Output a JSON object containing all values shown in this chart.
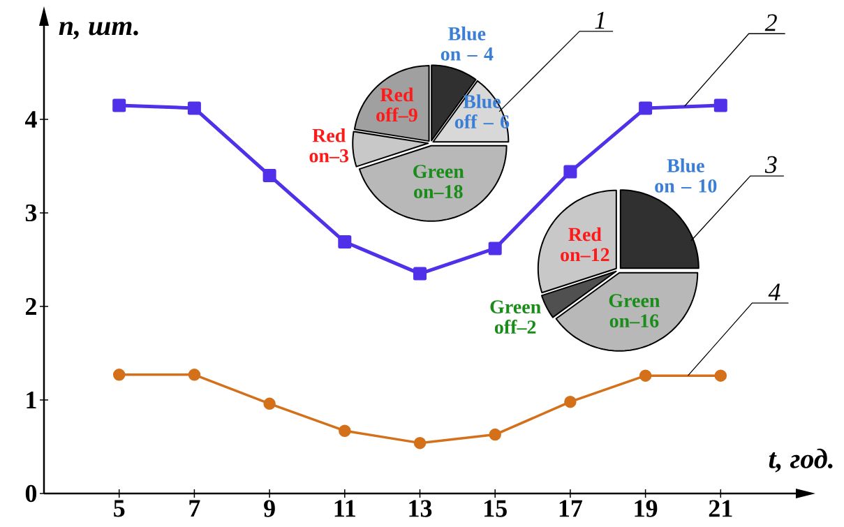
{
  "chart_data": [
    {
      "type": "line",
      "xlabel": "t, год.",
      "ylabel": "n, шт.",
      "xlim": [
        3,
        23
      ],
      "ylim": [
        0,
        5
      ],
      "xticks": [
        5,
        7,
        9,
        11,
        13,
        15,
        17,
        19,
        21
      ],
      "yticks": [
        0,
        1,
        2,
        3,
        4
      ],
      "x": [
        5,
        7,
        9,
        11,
        13,
        15,
        17,
        19,
        21
      ],
      "series": [
        {
          "color": "#5030e8",
          "marker": "square",
          "values": [
            4.15,
            4.12,
            3.4,
            2.69,
            2.35,
            2.62,
            3.44,
            4.12,
            4.15
          ]
        },
        {
          "color": "#d4701a",
          "marker": "circle",
          "values": [
            1.27,
            1.27,
            0.96,
            0.67,
            0.54,
            0.63,
            0.98,
            1.26,
            1.26
          ]
        }
      ],
      "annotations": [
        {
          "text": "2",
          "x": 20.04,
          "y": 4.14
        },
        {
          "text": "4",
          "x": 20.13,
          "y": 1.26
        }
      ]
    },
    {
      "type": "pie",
      "categories": [
        "Blue on – 4",
        "Blue off – 6",
        "Green on–18",
        "Red on–3",
        "Red off–9"
      ],
      "values": [
        10,
        15,
        45,
        7.5,
        22.5
      ],
      "colors": [
        "#303030",
        "#d8d8d8",
        "#b8b8b8",
        "#c8c8c8",
        "#a0a0a0"
      ],
      "annotations": [
        "1"
      ]
    },
    {
      "type": "pie",
      "categories": [
        "Blue on – 10",
        "Green on–16",
        "Green off–2",
        "Red on–12"
      ],
      "values": [
        25,
        40,
        5,
        30
      ],
      "colors": [
        "#303030",
        "#b8b8b8",
        "#505050",
        "#c8c8c8"
      ],
      "annotations": [
        "3"
      ]
    }
  ]
}
